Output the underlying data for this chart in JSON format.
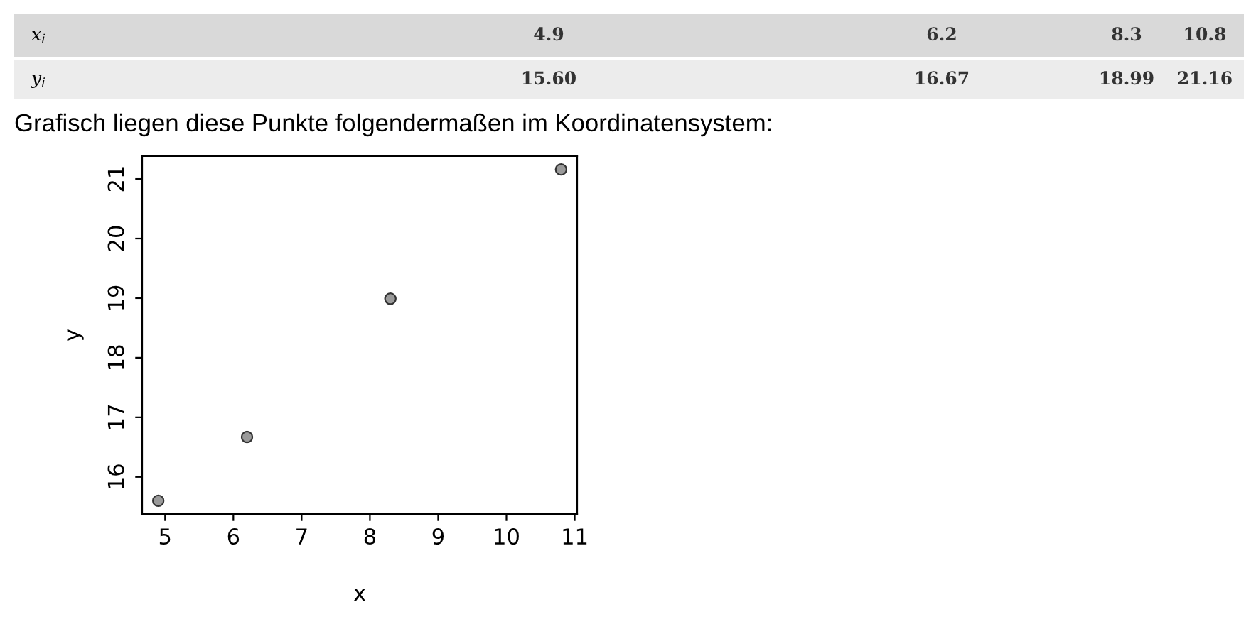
{
  "chart_data": {
    "type": "scatter",
    "xlabel": "x",
    "ylabel": "y",
    "annotations": [
      "x$_{i}$",
      "4.9",
      "6.2",
      "8.3",
      "10.8",
      "y$_{i}$",
      "15.60",
      "16.67",
      "18.99",
      "21.16",
      "Grafisch liegen diese Punkte folgendermaßen im Koordinatensystem:"
    ],
    "x": [
      4.9,
      6.2,
      8.3,
      10.8
    ],
    "series": [
      {
        "color": "#9a9a9a",
        "values": [
          15.6,
          16.67,
          18.99,
          21.16
        ]
      }
    ],
    "marker": "circle",
    "grid": false,
    "legend": false,
    "xlim": [
      4.664,
      11.036
    ],
    "ylim": [
      15.378,
      21.382
    ],
    "xticks": [
      5,
      6,
      7,
      8,
      9,
      10,
      11
    ],
    "yticks": [
      16,
      17,
      18,
      19,
      20,
      21
    ]
  }
}
